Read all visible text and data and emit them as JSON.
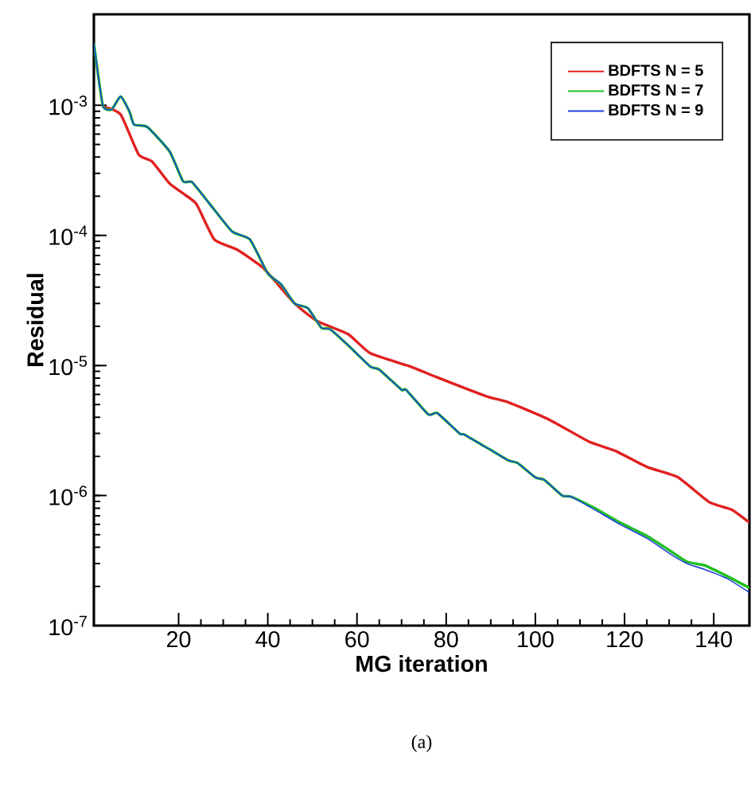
{
  "chart_data": {
    "type": "line",
    "xlabel": "MG iteration",
    "ylabel": "Residual",
    "annotations": [
      "(a)"
    ],
    "log": "y",
    "legend": "top right",
    "xlim": [
      1,
      148
    ],
    "ylim": [
      1e-07,
      0.005
    ],
    "xticks": [
      20,
      40,
      60,
      80,
      100,
      120,
      140
    ],
    "yticks": [
      {
        "value": 1e-07,
        "label": "10$^{-7}$"
      },
      {
        "value": 1e-06,
        "label": "10$^{-6}$"
      },
      {
        "value": 1e-05,
        "label": "10$^{-5}$"
      },
      {
        "value": 0.0001,
        "label": "10$^{-4}$"
      },
      {
        "value": 0.001,
        "label": "10$^{-3}$"
      }
    ],
    "series": [
      {
        "name": "BDFTS N = 5",
        "color": "#e02020",
        "x": [
          3,
          7,
          11,
          14,
          18,
          21,
          24,
          28,
          33,
          39,
          46,
          51,
          58,
          63,
          72,
          78,
          89,
          94,
          103,
          112,
          118,
          125,
          132,
          139,
          144,
          148
        ],
        "values": [
          0.00098,
          0.00085,
          0.00042,
          0.00037,
          0.00025,
          0.00021,
          0.000174,
          9.3e-05,
          7.8e-05,
          5.6e-05,
          3e-05,
          2.2e-05,
          1.74e-05,
          1.24e-05,
          9.8e-06,
          8.1e-06,
          5.8e-06,
          5.2e-06,
          3.85e-06,
          2.6e-06,
          2.2e-06,
          1.66e-06,
          1.38e-06,
          8.9e-07,
          7.8e-07,
          6.2e-07
        ]
      },
      {
        "name": "BDFTS N = 7",
        "color": "#20c020",
        "x": [
          1,
          3,
          5,
          7,
          9,
          10,
          13,
          18,
          21,
          23,
          27,
          32,
          36,
          40,
          43,
          46,
          49,
          52,
          54,
          58,
          63,
          65,
          70,
          71,
          76,
          78,
          83,
          84,
          88,
          90,
          94,
          96,
          100,
          102,
          106,
          108,
          113,
          119,
          125,
          130,
          134,
          138,
          143,
          148
        ],
        "values": [
          0.003,
          0.001,
          0.00093,
          0.00117,
          0.00089,
          0.00071,
          0.00068,
          0.00044,
          0.00026,
          0.000257,
          0.000174,
          0.000107,
          9.3e-05,
          5.1e-05,
          4.2e-05,
          3e-05,
          2.75e-05,
          1.95e-05,
          1.9e-05,
          1.43e-05,
          9.8e-06,
          9.3e-06,
          6.5e-06,
          6.5e-06,
          4.2e-06,
          4.3e-06,
          3e-06,
          2.95e-06,
          2.45e-06,
          2.24e-06,
          1.86e-06,
          1.78e-06,
          1.38e-06,
          1.32e-06,
          1e-06,
          9.8e-07,
          8.1e-07,
          6.2e-07,
          4.9e-07,
          3.8e-07,
          3.1e-07,
          2.9e-07,
          2.4e-07,
          1.95e-07
        ]
      },
      {
        "name": "BDFTS N = 9",
        "color": "#2040e0",
        "x": [
          1,
          3,
          5,
          7,
          9,
          10,
          13,
          18,
          21,
          23,
          27,
          32,
          36,
          40,
          43,
          46,
          49,
          52,
          54,
          58,
          63,
          65,
          70,
          71,
          76,
          78,
          83,
          84,
          88,
          90,
          94,
          96,
          100,
          102,
          106,
          108,
          113,
          119,
          125,
          130,
          134,
          138,
          143,
          148
        ],
        "values": [
          0.003,
          0.001,
          0.00093,
          0.00117,
          0.00089,
          0.00071,
          0.00068,
          0.00044,
          0.00026,
          0.000257,
          0.000174,
          0.000107,
          9.3e-05,
          5.1e-05,
          4.2e-05,
          3e-05,
          2.75e-05,
          1.95e-05,
          1.9e-05,
          1.43e-05,
          9.8e-06,
          9.3e-06,
          6.5e-06,
          6.5e-06,
          4.2e-06,
          4.3e-06,
          3e-06,
          2.95e-06,
          2.45e-06,
          2.24e-06,
          1.86e-06,
          1.78e-06,
          1.38e-06,
          1.32e-06,
          1e-06,
          9.8e-07,
          7.9e-07,
          6e-07,
          4.7e-07,
          3.6e-07,
          3e-07,
          2.7e-07,
          2.3e-07,
          1.8e-07
        ]
      }
    ]
  }
}
